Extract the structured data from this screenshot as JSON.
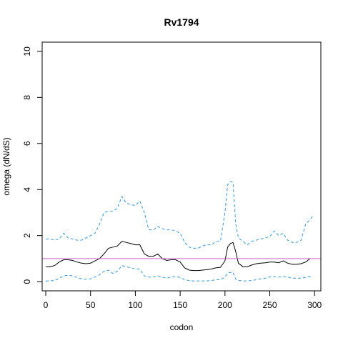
{
  "chart_data": {
    "type": "line",
    "title": "Rv1794",
    "xlabel": "codon",
    "ylabel": "omega (dN/dS)",
    "xlim": [
      -4,
      307
    ],
    "ylim": [
      -0.4,
      10.4
    ],
    "xticks": [
      0,
      50,
      100,
      150,
      200,
      250,
      300
    ],
    "yticks": [
      0,
      2,
      4,
      6,
      8,
      10
    ],
    "grid": false,
    "legend": "none",
    "reference_line": {
      "y": 1,
      "color": "#cc66cc"
    },
    "colors": {
      "mean": "#000000",
      "ci": "#3399dd",
      "frame": "#000000"
    },
    "series": [
      {
        "role": "mean",
        "style": "solid",
        "x": [
          0,
          5,
          10,
          15,
          20,
          25,
          30,
          35,
          40,
          45,
          50,
          55,
          60,
          65,
          70,
          75,
          80,
          85,
          90,
          95,
          100,
          105,
          110,
          115,
          120,
          125,
          130,
          135,
          140,
          145,
          150,
          155,
          160,
          165,
          170,
          175,
          180,
          185,
          190,
          195,
          200,
          203,
          206,
          209,
          212,
          215,
          220,
          225,
          230,
          235,
          240,
          245,
          250,
          255,
          260,
          265,
          270,
          275,
          280,
          285,
          290,
          295
        ],
        "y": [
          0.65,
          0.65,
          0.7,
          0.85,
          0.95,
          0.95,
          0.92,
          0.85,
          0.8,
          0.78,
          0.8,
          0.9,
          1.0,
          1.2,
          1.45,
          1.5,
          1.55,
          1.75,
          1.7,
          1.65,
          1.6,
          1.6,
          1.2,
          1.1,
          1.1,
          1.2,
          1.0,
          0.92,
          0.95,
          0.95,
          0.85,
          0.6,
          0.5,
          0.48,
          0.48,
          0.5,
          0.52,
          0.55,
          0.6,
          0.62,
          0.9,
          1.5,
          1.65,
          1.7,
          1.3,
          0.8,
          0.65,
          0.65,
          0.72,
          0.78,
          0.8,
          0.82,
          0.85,
          0.85,
          0.82,
          0.9,
          0.8,
          0.75,
          0.75,
          0.78,
          0.85,
          1.0
        ]
      },
      {
        "role": "upper",
        "style": "dashed",
        "x": [
          0,
          5,
          10,
          15,
          20,
          25,
          30,
          35,
          40,
          45,
          50,
          55,
          60,
          65,
          70,
          75,
          80,
          85,
          90,
          95,
          100,
          105,
          110,
          115,
          120,
          125,
          130,
          135,
          140,
          145,
          150,
          155,
          160,
          165,
          170,
          175,
          180,
          185,
          190,
          195,
          200,
          203,
          206,
          209,
          212,
          215,
          220,
          225,
          230,
          235,
          240,
          245,
          250,
          255,
          260,
          265,
          270,
          275,
          280,
          285,
          290,
          295,
          298
        ],
        "y": [
          1.85,
          1.85,
          1.8,
          1.85,
          2.1,
          1.9,
          1.85,
          1.8,
          1.8,
          1.9,
          2.0,
          2.1,
          2.5,
          3.0,
          3.05,
          3.05,
          3.2,
          3.7,
          3.4,
          3.35,
          3.3,
          3.5,
          3.0,
          2.25,
          2.25,
          2.4,
          2.3,
          2.25,
          2.25,
          2.2,
          2.1,
          1.7,
          1.5,
          1.45,
          1.45,
          1.55,
          1.6,
          1.6,
          1.75,
          1.75,
          3.0,
          4.2,
          4.35,
          4.3,
          2.5,
          1.9,
          1.75,
          1.6,
          1.75,
          1.8,
          1.85,
          1.9,
          1.95,
          2.2,
          2.0,
          2.1,
          1.8,
          1.7,
          1.7,
          1.8,
          2.5,
          2.7,
          2.85
        ]
      },
      {
        "role": "lower",
        "style": "dashed",
        "x": [
          0,
          5,
          10,
          15,
          20,
          25,
          30,
          35,
          40,
          45,
          50,
          55,
          60,
          65,
          70,
          75,
          80,
          85,
          90,
          95,
          100,
          105,
          110,
          115,
          120,
          125,
          130,
          135,
          140,
          145,
          150,
          155,
          160,
          165,
          170,
          175,
          180,
          185,
          190,
          195,
          200,
          203,
          206,
          209,
          212,
          215,
          220,
          225,
          230,
          235,
          240,
          245,
          250,
          255,
          260,
          265,
          270,
          275,
          280,
          285,
          290,
          295,
          298
        ],
        "y": [
          0.03,
          0.03,
          0.05,
          0.15,
          0.25,
          0.28,
          0.25,
          0.18,
          0.12,
          0.1,
          0.12,
          0.2,
          0.3,
          0.45,
          0.5,
          0.35,
          0.45,
          0.7,
          0.65,
          0.6,
          0.55,
          0.55,
          0.25,
          0.2,
          0.2,
          0.25,
          0.2,
          0.15,
          0.2,
          0.22,
          0.18,
          0.08,
          0.05,
          0.03,
          0.03,
          0.03,
          0.03,
          0.05,
          0.08,
          0.08,
          0.2,
          0.38,
          0.4,
          0.4,
          0.1,
          0.05,
          0.03,
          0.03,
          0.05,
          0.08,
          0.12,
          0.15,
          0.2,
          0.22,
          0.2,
          0.22,
          0.2,
          0.15,
          0.15,
          0.15,
          0.18,
          0.22,
          0.2
        ]
      }
    ]
  }
}
